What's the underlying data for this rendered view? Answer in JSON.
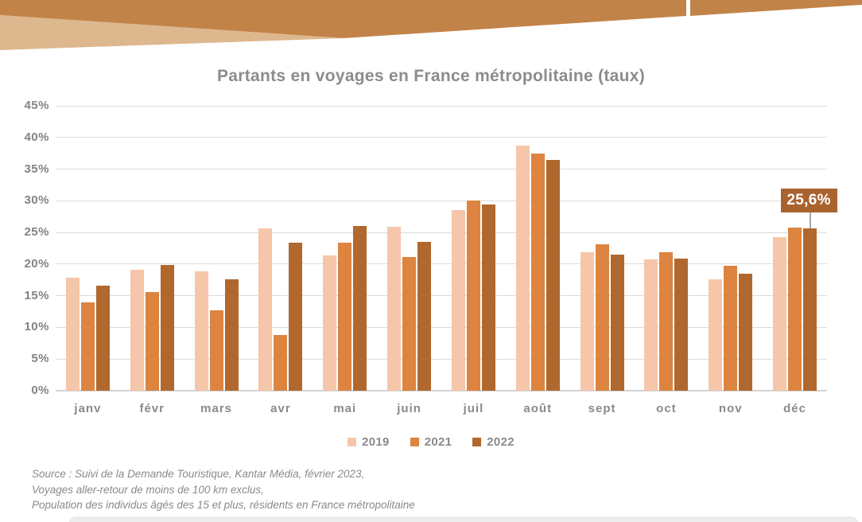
{
  "decor": {
    "band_color": "#C28349",
    "band_light_color": "#DDB78D",
    "bottom_bar_color": "#ECECEC"
  },
  "chart_data": {
    "type": "bar",
    "title": "Partants en voyages en France métropolitaine (taux)",
    "categories": [
      "janv",
      "févr",
      "mars",
      "avr",
      "mai",
      "juin",
      "juil",
      "août",
      "sept",
      "oct",
      "nov",
      "déc"
    ],
    "series": [
      {
        "name": "2019",
        "color": "#F5C6A9",
        "values": [
          17.9,
          19.1,
          18.9,
          25.6,
          21.4,
          25.9,
          28.5,
          38.7,
          21.9,
          20.7,
          17.6,
          24.2
        ]
      },
      {
        "name": "2021",
        "color": "#DC8440",
        "values": [
          14.0,
          15.6,
          12.7,
          8.8,
          23.4,
          21.1,
          30.0,
          37.5,
          23.1,
          21.9,
          19.7,
          25.8
        ]
      },
      {
        "name": "2022",
        "color": "#B0682F",
        "values": [
          16.6,
          19.9,
          17.6,
          23.4,
          26.0,
          23.5,
          29.4,
          36.4,
          21.5,
          20.9,
          18.5,
          25.6
        ]
      }
    ],
    "xlabel": "",
    "ylabel": "",
    "ylim": [
      0,
      45
    ],
    "ytick_step": 5,
    "ytick_suffix": "%",
    "grid": true,
    "legend_position": "bottom",
    "annotation": {
      "text": "25,6%",
      "category": "déc",
      "series": "2022",
      "box_color": "#A9632E",
      "text_color": "#FFFFFF",
      "line_color": "#A6A6A6"
    }
  },
  "source": {
    "lines": [
      "Source : Suivi de la Demande Touristique, Kantar Média, février 2023,",
      "Voyages aller-retour de moins de 100 km exclus,",
      "Population des individus âgés des 15 et plus, résidents en France métropolitaine"
    ]
  }
}
